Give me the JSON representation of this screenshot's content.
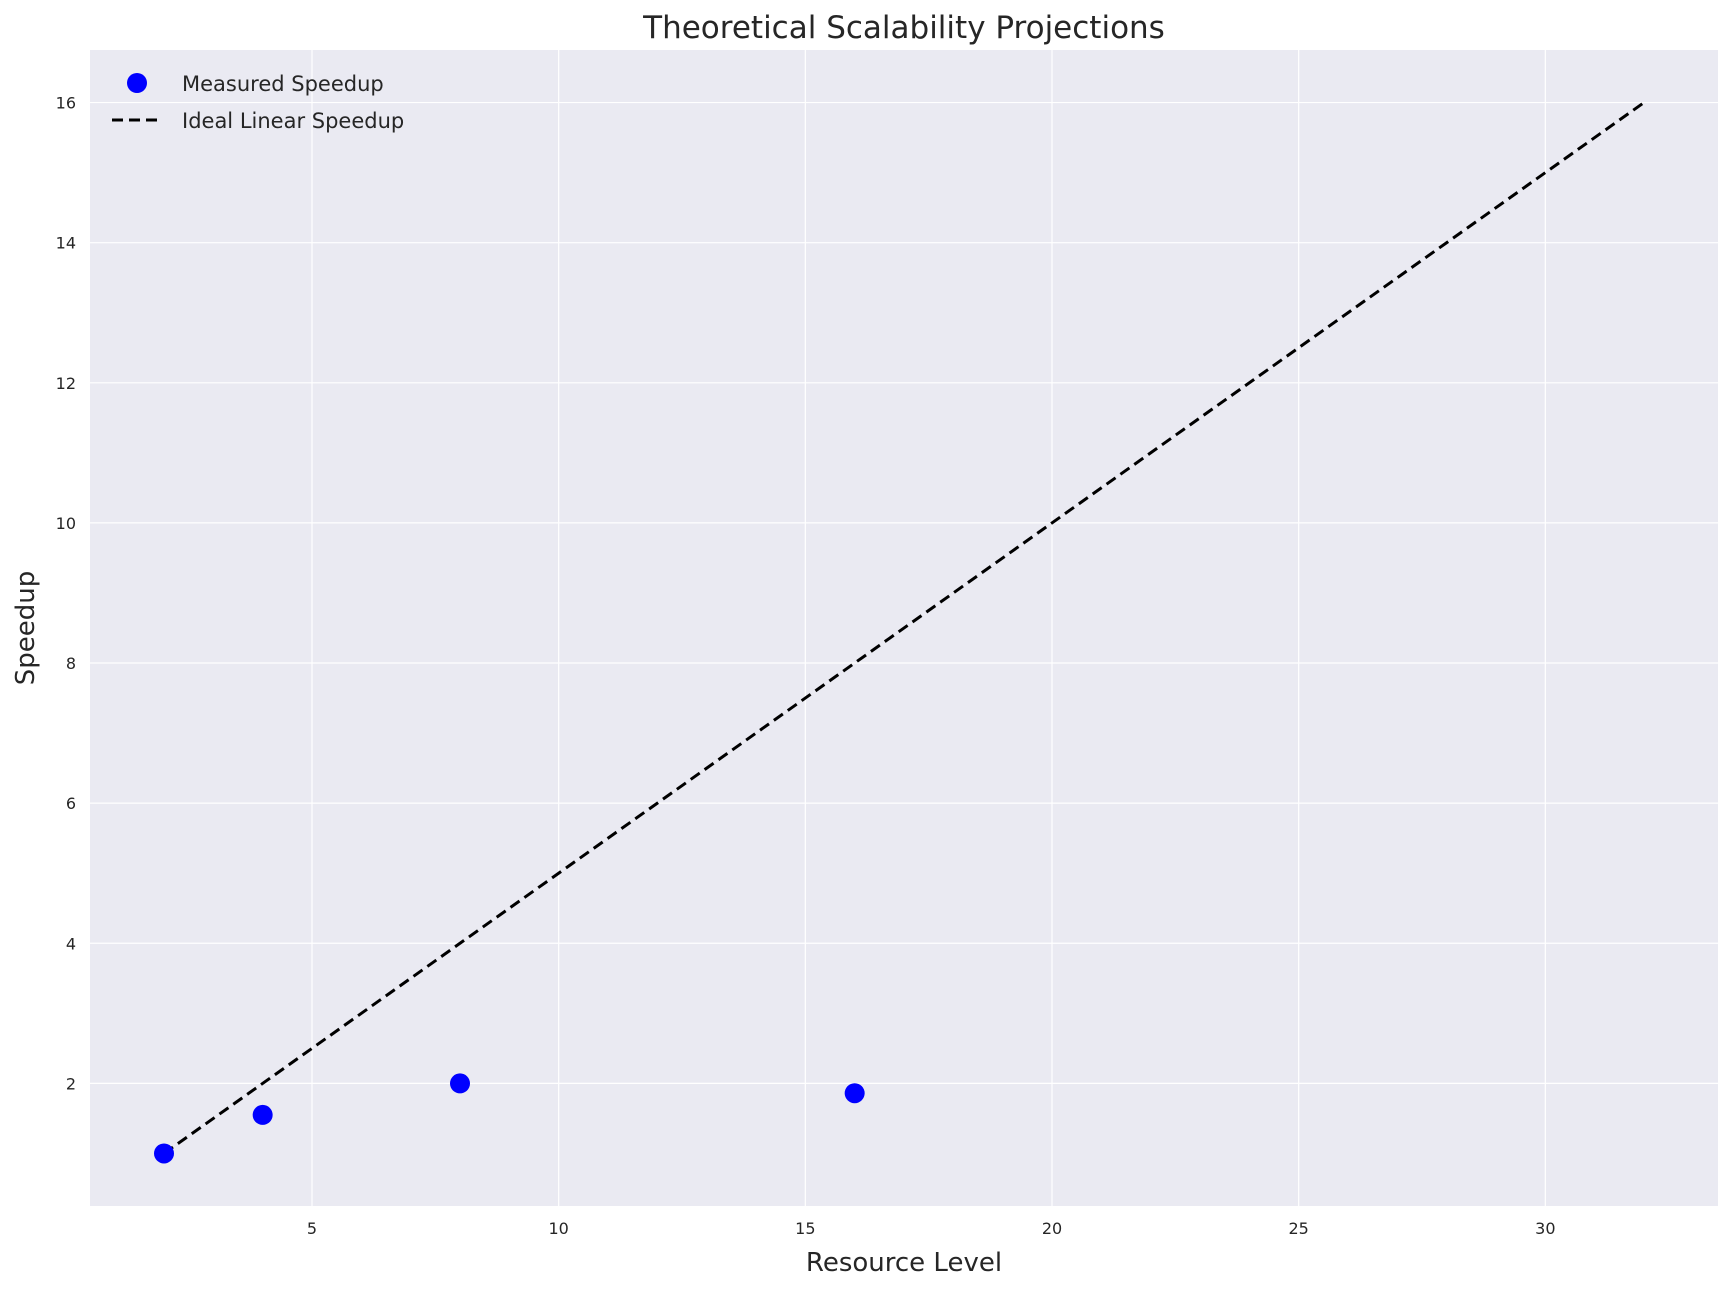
{
  "chart_data": {
    "type": "scatter",
    "title": "Theoretical Scalability Projections",
    "xlabel": "Resource Level",
    "ylabel": "Speedup",
    "xlim": [
      0.5,
      33.5
    ],
    "ylim": [
      0.25,
      16.75
    ],
    "x_ticks": [
      5,
      10,
      15,
      20,
      25,
      30
    ],
    "y_ticks": [
      2,
      4,
      6,
      8,
      10,
      12,
      14,
      16
    ],
    "grid": true,
    "legend_position": "top-left",
    "background_color": "#eaeaf2",
    "grid_color": "#ffffff",
    "series": [
      {
        "name": "Measured Speedup",
        "kind": "scatter",
        "color": "#0000ff",
        "points": [
          {
            "x": 2,
            "y": 1.0
          },
          {
            "x": 4,
            "y": 1.55
          },
          {
            "x": 8,
            "y": 2.0
          },
          {
            "x": 16,
            "y": 1.86
          }
        ]
      },
      {
        "name": "Ideal Linear Speedup",
        "kind": "line",
        "style": "dashed",
        "color": "#000000",
        "points": [
          {
            "x": 2,
            "y": 1
          },
          {
            "x": 32,
            "y": 16
          }
        ]
      }
    ]
  }
}
